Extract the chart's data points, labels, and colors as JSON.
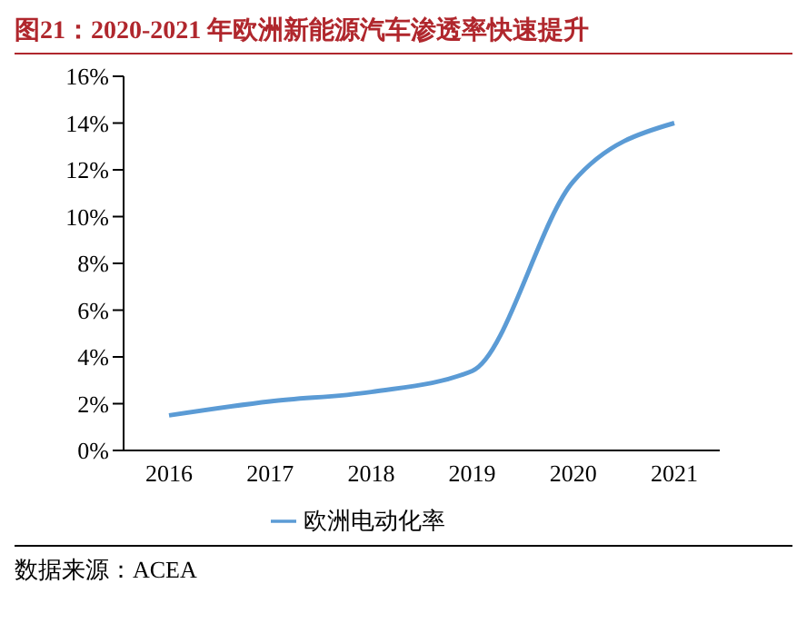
{
  "chart_data": {
    "type": "line",
    "title": "图21：2020-2021 年欧洲新能源汽车渗透率快速提升",
    "categories": [
      "2016",
      "2017",
      "2018",
      "2019",
      "2020",
      "2021"
    ],
    "series": [
      {
        "name": "欧洲电动化率",
        "color": "#5b9bd5",
        "values": [
          1.5,
          2.1,
          2.5,
          3.4,
          11.5,
          14
        ]
      }
    ],
    "ylim": [
      0,
      16
    ],
    "yticks": [
      {
        "value": 0,
        "label": "0%"
      },
      {
        "value": 2,
        "label": "2%"
      },
      {
        "value": 4,
        "label": "4%"
      },
      {
        "value": 6,
        "label": "6%"
      },
      {
        "value": 8,
        "label": "8%"
      },
      {
        "value": 10,
        "label": "10%"
      },
      {
        "value": 12,
        "label": "12%"
      },
      {
        "value": 14,
        "label": "14%"
      },
      {
        "value": 16,
        "label": "16%"
      }
    ],
    "grid": false,
    "legend": "bottom",
    "marker": "none",
    "line_style": "solid",
    "annotations": [
      "数据来源：ACEA"
    ]
  }
}
